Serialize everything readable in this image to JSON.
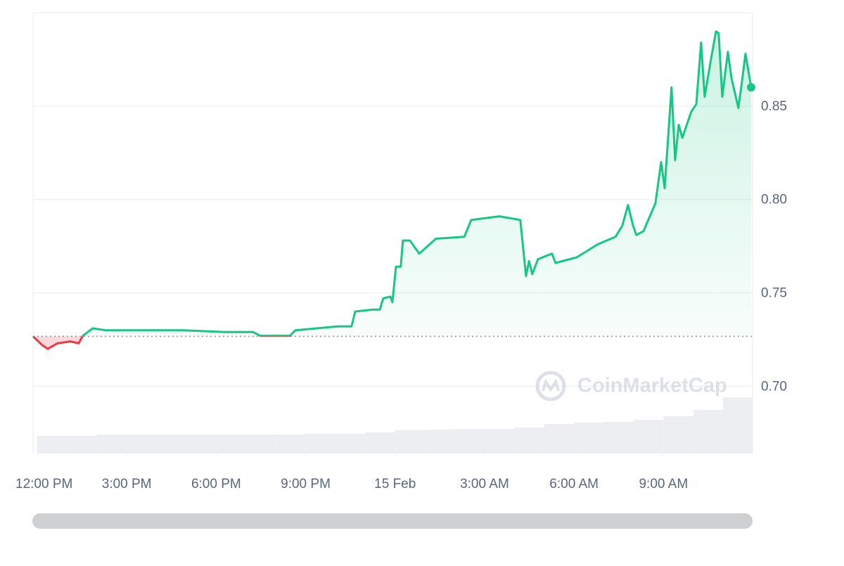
{
  "chart_data": {
    "type": "line",
    "x": [
      11.86,
      12.17,
      12.35,
      12.68,
      13.11,
      13.39,
      13.53,
      13.86,
      14.29,
      15.47,
      16.88,
      18.3,
      19.24,
      19.48,
      20.47,
      20.66,
      22.07,
      22.54,
      22.66,
      23.25,
      23.49,
      23.6,
      23.84,
      23.91,
      24.03,
      24.19,
      24.26,
      24.5,
      24.81,
      25.37,
      26.32,
      26.55,
      27.5,
      28.2,
      28.39,
      28.49,
      28.6,
      28.79,
      29.26,
      29.38,
      30.09,
      30.8,
      31.39,
      31.62,
      31.81,
      31.98,
      32.09,
      32.33,
      32.73,
      32.92,
      33.04,
      33.27,
      33.39,
      33.51,
      33.63,
      33.93,
      34.1,
      34.26,
      34.38,
      34.57,
      34.76,
      34.85,
      34.97,
      35.16,
      35.28,
      35.51,
      35.63,
      35.75,
      35.94
    ],
    "values": [
      0.7267,
      0.722,
      0.72,
      0.723,
      0.724,
      0.723,
      0.727,
      0.731,
      0.73,
      0.73,
      0.73,
      0.729,
      0.729,
      0.727,
      0.727,
      0.73,
      0.732,
      0.732,
      0.74,
      0.741,
      0.741,
      0.747,
      0.748,
      0.745,
      0.764,
      0.764,
      0.778,
      0.778,
      0.771,
      0.779,
      0.78,
      0.789,
      0.791,
      0.789,
      0.759,
      0.767,
      0.76,
      0.768,
      0.771,
      0.766,
      0.769,
      0.776,
      0.78,
      0.786,
      0.797,
      0.786,
      0.781,
      0.783,
      0.798,
      0.82,
      0.806,
      0.86,
      0.821,
      0.84,
      0.833,
      0.847,
      0.851,
      0.884,
      0.855,
      0.873,
      0.89,
      0.889,
      0.855,
      0.879,
      0.865,
      0.849,
      0.863,
      0.878,
      0.86
    ],
    "baseline": 0.7267,
    "up_color": "#16c784",
    "down_color": "#ea3943",
    "xlim": [
      11.86,
      35.94
    ],
    "ylim": [
      0.664,
      0.9
    ],
    "xticks": [
      {
        "value": 12,
        "label": "12:00 PM"
      },
      {
        "value": 15,
        "label": "3:00 PM"
      },
      {
        "value": 18,
        "label": "6:00 PM"
      },
      {
        "value": 21,
        "label": "9:00 PM"
      },
      {
        "value": 24,
        "label": "15 Feb"
      },
      {
        "value": 27,
        "label": "3:00 AM"
      },
      {
        "value": 30,
        "label": "6:00 AM"
      },
      {
        "value": 33,
        "label": "9:00 AM"
      }
    ],
    "yticks": [
      {
        "value": 0.7,
        "label": "0.70"
      },
      0.75,
      {
        "value": 0.8,
        "label": "0.80"
      },
      0.85
    ],
    "grid": true,
    "volume": {
      "x": [
        12,
        13,
        14,
        15,
        16,
        17,
        18,
        19,
        20,
        21,
        22,
        23,
        24,
        25,
        26,
        27,
        28,
        29,
        30,
        31,
        32,
        33,
        34,
        35
      ],
      "values": [
        25,
        25,
        27,
        27,
        27,
        27,
        27,
        27,
        27,
        28,
        28,
        30,
        33,
        34,
        35,
        35,
        37,
        42,
        44,
        45,
        48,
        53,
        62,
        80
      ],
      "ylim": [
        0,
        100
      ],
      "color": "#eceef2"
    },
    "watermark": "CoinMarketCap"
  }
}
